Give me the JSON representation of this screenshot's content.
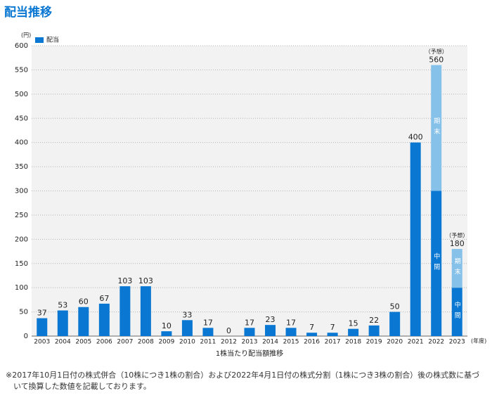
{
  "chart_data": {
    "type": "stacked_bar",
    "title": "配当推移",
    "y_unit": "(円)",
    "x_unit": "(年度)",
    "xlabel": "1株当たり配当額推移",
    "categories": [
      "2003",
      "2004",
      "2005",
      "2006",
      "2007",
      "2008",
      "2009",
      "2010",
      "2011",
      "2012",
      "2013",
      "2014",
      "2015",
      "2016",
      "2017",
      "2018",
      "2019",
      "2020",
      "2021",
      "2022",
      "2023"
    ],
    "series": [
      {
        "name": "配当",
        "color": "#0a78d2",
        "values": [
          37,
          53,
          60,
          67,
          103,
          103,
          10,
          33,
          17,
          0,
          17,
          23,
          17,
          7,
          7,
          15,
          22,
          50,
          400,
          null,
          null
        ]
      },
      {
        "name": "中間",
        "color": "#0a78d2",
        "values": [
          null,
          null,
          null,
          null,
          null,
          null,
          null,
          null,
          null,
          null,
          null,
          null,
          null,
          null,
          null,
          null,
          null,
          null,
          null,
          300,
          100
        ]
      },
      {
        "name": "期末",
        "color": "#86c1ea",
        "values": [
          null,
          null,
          null,
          null,
          null,
          null,
          null,
          null,
          null,
          null,
          null,
          null,
          null,
          null,
          null,
          null,
          null,
          null,
          null,
          260,
          80
        ]
      }
    ],
    "legend_series": [
      0
    ],
    "totals": [
      null,
      null,
      null,
      null,
      null,
      null,
      null,
      null,
      null,
      null,
      null,
      null,
      null,
      null,
      null,
      null,
      null,
      null,
      null,
      560,
      180
    ],
    "total_note": "（予想）",
    "ylim": [
      0,
      600
    ],
    "yticks": [
      0,
      50,
      100,
      150,
      200,
      250,
      300,
      350,
      400,
      450,
      500,
      550,
      600
    ],
    "grid": true,
    "footnote": "※2017年10月1日付の株式併合（10株につき1株の割合）および2022年4月1日付の株式分割（1株につき3株の割合）後の株式数に基づいて換算した数値を記載しております。"
  }
}
